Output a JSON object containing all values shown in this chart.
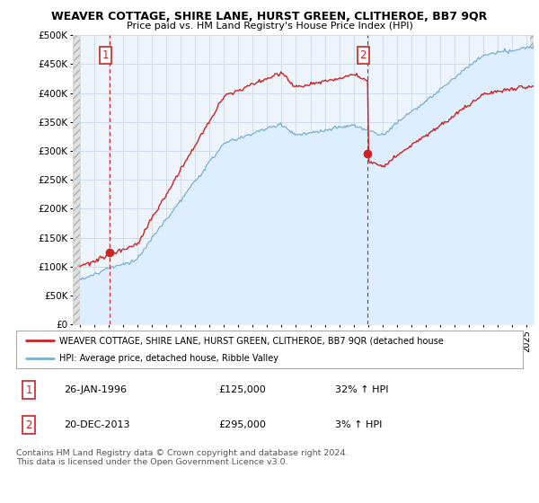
{
  "title": "WEAVER COTTAGE, SHIRE LANE, HURST GREEN, CLITHEROE, BB7 9QR",
  "subtitle": "Price paid vs. HM Land Registry's House Price Index (HPI)",
  "ylabel_ticks": [
    "£0",
    "£50K",
    "£100K",
    "£150K",
    "£200K",
    "£250K",
    "£300K",
    "£350K",
    "£400K",
    "£450K",
    "£500K"
  ],
  "ytick_vals": [
    0,
    50000,
    100000,
    150000,
    200000,
    250000,
    300000,
    350000,
    400000,
    450000,
    500000
  ],
  "xlim_start": 1993.5,
  "xlim_end": 2025.5,
  "ylim": [
    0,
    500000
  ],
  "price_color": "#cc2222",
  "hpi_color": "#7ab0d4",
  "hpi_fill_color": "#ddeeff",
  "chart_bg": "#eef4fb",
  "sale1_x": 1996.07,
  "sale1_y": 125000,
  "sale2_x": 2013.97,
  "sale2_y": 295000,
  "legend_line1": "WEAVER COTTAGE, SHIRE LANE, HURST GREEN, CLITHEROE, BB7 9QR (detached house",
  "legend_line2": "HPI: Average price, detached house, Ribble Valley",
  "table_row1_num": "1",
  "table_row1_date": "26-JAN-1996",
  "table_row1_price": "£125,000",
  "table_row1_hpi": "32% ↑ HPI",
  "table_row2_num": "2",
  "table_row2_date": "20-DEC-2013",
  "table_row2_price": "£295,000",
  "table_row2_hpi": "3% ↑ HPI",
  "footer": "Contains HM Land Registry data © Crown copyright and database right 2024.\nThis data is licensed under the Open Government Licence v3.0.",
  "grid_color": "#c8d8e8",
  "hatch_color": "#d8d8d8"
}
